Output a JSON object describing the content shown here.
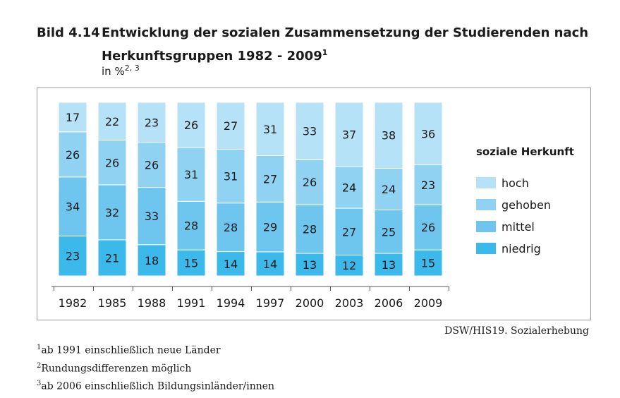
{
  "header": {
    "number": "Bild 4.14",
    "title_line1": "Entwicklung der sozialen Zusammensetzung der Studierenden nach",
    "title_line2": "Herkunftsgruppen 1982 - 2009",
    "title_sup": "1",
    "subtitle": "in %",
    "subtitle_sup": "2, 3"
  },
  "chart_data": {
    "type": "bar",
    "stacked": true,
    "percent": true,
    "categories": [
      "1982",
      "1985",
      "1988",
      "1991",
      "1994",
      "1997",
      "2000",
      "2003",
      "2006",
      "2009"
    ],
    "series": [
      {
        "name": "niedrig",
        "values": [
          23,
          21,
          18,
          15,
          14,
          14,
          13,
          12,
          13,
          15
        ],
        "color": "#3ab9ea"
      },
      {
        "name": "mittel",
        "values": [
          34,
          32,
          33,
          28,
          28,
          29,
          28,
          27,
          25,
          26
        ],
        "color": "#6ec6ee"
      },
      {
        "name": "gehoben",
        "values": [
          26,
          26,
          26,
          31,
          31,
          27,
          26,
          24,
          24,
          23
        ],
        "color": "#90d2f2"
      },
      {
        "name": "hoch",
        "values": [
          17,
          22,
          23,
          26,
          27,
          31,
          33,
          37,
          38,
          36
        ],
        "color": "#b6e2f7"
      }
    ],
    "legend_title": "soziale Herkunft",
    "legend_order": [
      "hoch",
      "gehoben",
      "mittel",
      "niedrig"
    ],
    "legend_position": "right",
    "grid": false
  },
  "source": "DSW/HIS19. Sozialerhebung",
  "footnotes": [
    {
      "sup": "1",
      "text": "ab 1991 einschließlich neue Länder"
    },
    {
      "sup": "2",
      "text": "Rundungsdifferenzen möglich"
    },
    {
      "sup": "3",
      "text": "ab 2006 einschließlich Bildungsinländer/innen"
    }
  ]
}
